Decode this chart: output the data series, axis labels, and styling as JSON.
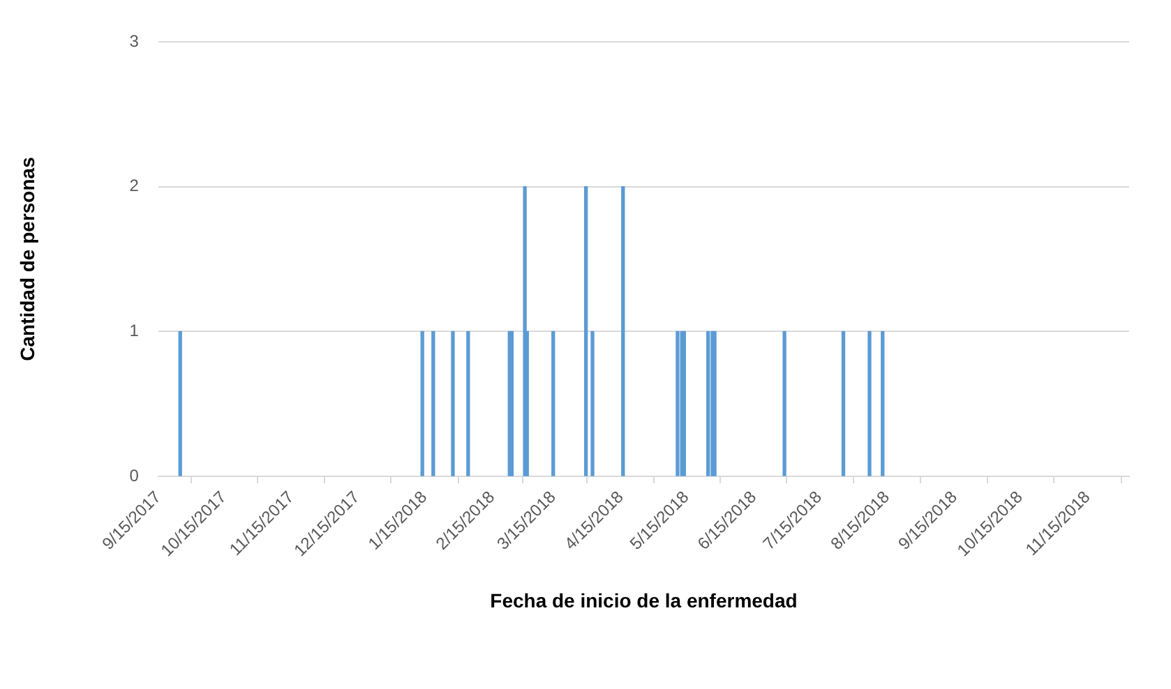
{
  "chart_data": {
    "type": "bar",
    "xlabel": "Fecha de inicio de la enfermedad",
    "ylabel": "Cantidad de personas",
    "x": [
      "2017-09-25",
      "2018-01-14",
      "2018-01-19",
      "2018-01-28",
      "2018-02-04",
      "2018-02-23",
      "2018-02-24",
      "2018-03-02",
      "2018-03-03",
      "2018-03-15",
      "2018-03-30",
      "2018-04-02",
      "2018-04-16",
      "2018-05-11",
      "2018-05-13",
      "2018-05-14",
      "2018-05-25",
      "2018-05-27",
      "2018-05-28",
      "2018-06-29",
      "2018-07-26",
      "2018-08-07",
      "2018-08-13"
    ],
    "values": [
      1,
      1,
      1,
      1,
      1,
      1,
      1,
      2,
      1,
      1,
      2,
      1,
      2,
      1,
      1,
      1,
      1,
      1,
      1,
      1,
      1,
      1,
      1
    ],
    "color": "#5b9bd5",
    "xlim": [
      "2017-09-15",
      "2018-12-04"
    ],
    "xticks": [
      {
        "value": "2017-09-15",
        "label": "9/15/2017"
      },
      {
        "value": "2017-10-15",
        "label": "10/15/2017"
      },
      {
        "value": "2017-11-15",
        "label": "11/15/2017"
      },
      {
        "value": "2017-12-15",
        "label": "12/15/2017"
      },
      {
        "value": "2018-01-15",
        "label": "1/15/2018"
      },
      {
        "value": "2018-02-15",
        "label": "2/15/2018"
      },
      {
        "value": "2018-03-15",
        "label": "3/15/2018"
      },
      {
        "value": "2018-04-15",
        "label": "4/15/2018"
      },
      {
        "value": "2018-05-15",
        "label": "5/15/2018"
      },
      {
        "value": "2018-06-15",
        "label": "6/15/2018"
      },
      {
        "value": "2018-07-15",
        "label": "7/15/2018"
      },
      {
        "value": "2018-08-15",
        "label": "8/15/2018"
      },
      {
        "value": "2018-09-15",
        "label": "9/15/2018"
      },
      {
        "value": "2018-10-15",
        "label": "10/15/2018"
      },
      {
        "value": "2018-11-15",
        "label": "11/15/2018"
      }
    ],
    "ylim": [
      0,
      3
    ],
    "yticks": [
      0,
      1,
      2,
      3
    ],
    "grid": "y",
    "legend": false
  }
}
